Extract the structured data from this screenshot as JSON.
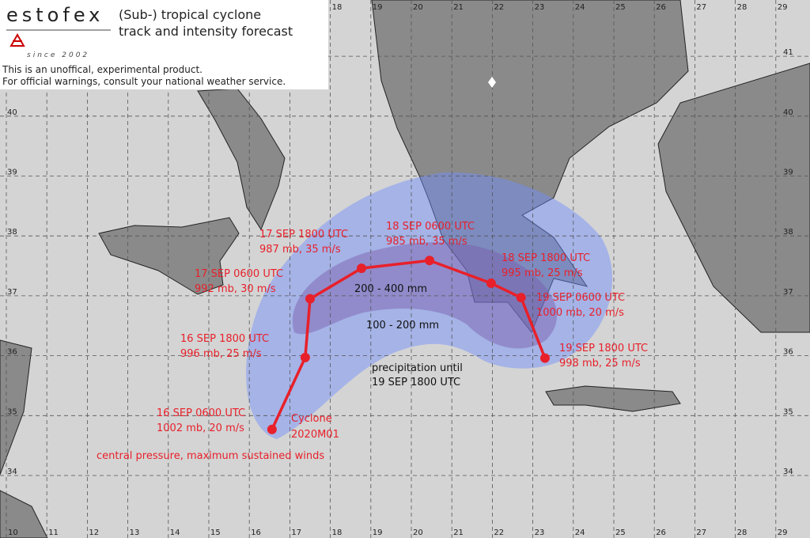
{
  "header": {
    "brand": "estofex",
    "title_line1": "(Sub-) tropical cyclone",
    "title_line2": "track and intensity forecast",
    "since": "since 2002",
    "disclaimer_line1": "This is an unoffical, experimental product.",
    "disclaimer_line2": "For official warnings, consult your national weather service."
  },
  "map": {
    "lon_labels": [
      10,
      11,
      12,
      13,
      14,
      15,
      16,
      17,
      18,
      19,
      20,
      21,
      22,
      23,
      24,
      25,
      26,
      27,
      28,
      29
    ],
    "lat_labels": [
      34,
      35,
      36,
      37,
      38,
      39,
      40,
      41
    ],
    "track": [
      {
        "time": "16 SEP 0600 UTC",
        "intensity": "1002 mb, 20 m/s",
        "lon": 16.56,
        "lat": 34.77
      },
      {
        "time": "16 SEP 1800 UTC",
        "intensity": "996 mb, 25 m/s",
        "lon": 17.38,
        "lat": 35.97
      },
      {
        "time": "17 SEP 0600 UTC",
        "intensity": "992 mb, 30 m/s",
        "lon": 17.5,
        "lat": 36.95
      },
      {
        "time": "17 SEP 1800 UTC",
        "intensity": "987 mb, 35 m/s",
        "lon": 18.77,
        "lat": 37.46
      },
      {
        "time": "18 SEP 0600 UTC",
        "intensity": "985 mb, 35 m/s",
        "lon": 20.45,
        "lat": 37.59
      },
      {
        "time": "18 SEP 1800 UTC",
        "intensity": "995 mb, 25 m/s",
        "lon": 21.97,
        "lat": 37.21
      },
      {
        "time": "19 SEP 0600 UTC",
        "intensity": "1000 mb, 20 m/s",
        "lon": 22.71,
        "lat": 36.97
      },
      {
        "time": "19 SEP 1800 UTC",
        "intensity": "998 mb, 25 m/s",
        "lon": 23.3,
        "lat": 35.96
      }
    ],
    "cyclone_line1": "Cyclone",
    "cyclone_line2": "2020M01",
    "legend_note": "central pressure, maximum sustained winds",
    "inner_band": "200 - 400 mm",
    "outer_band": "100 - 200 mm",
    "precip_line1": "precipitation until",
    "precip_line2": "19 SEP 1800 UTC"
  }
}
